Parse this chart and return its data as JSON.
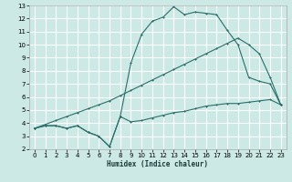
{
  "xlabel": "Humidex (Indice chaleur)",
  "bg_color": "#cce9e5",
  "grid_color": "#ffffff",
  "line_color": "#2a6e6a",
  "xlim": [
    -0.5,
    23.5
  ],
  "ylim": [
    2,
    13
  ],
  "xticks": [
    0,
    1,
    2,
    3,
    4,
    5,
    6,
    7,
    8,
    9,
    10,
    11,
    12,
    13,
    14,
    15,
    16,
    17,
    18,
    19,
    20,
    21,
    22,
    23
  ],
  "yticks": [
    2,
    3,
    4,
    5,
    6,
    7,
    8,
    9,
    10,
    11,
    12,
    13
  ],
  "curve1_x": [
    0,
    1,
    2,
    3,
    4,
    5,
    6,
    7,
    8,
    9,
    10,
    11,
    12,
    13,
    14,
    15,
    16,
    17,
    18,
    19,
    20,
    21,
    22,
    23
  ],
  "curve1_y": [
    3.6,
    3.8,
    3.8,
    3.6,
    3.8,
    3.3,
    3.0,
    2.2,
    4.5,
    4.1,
    4.2,
    4.4,
    4.6,
    4.8,
    4.9,
    5.1,
    5.3,
    5.4,
    5.5,
    5.5,
    5.6,
    5.7,
    5.8,
    5.4
  ],
  "curve2_x": [
    0,
    1,
    2,
    3,
    4,
    5,
    6,
    7,
    8,
    9,
    10,
    11,
    12,
    13,
    14,
    15,
    16,
    17,
    18,
    19,
    20,
    21,
    22,
    23
  ],
  "curve2_y": [
    3.6,
    3.8,
    3.8,
    3.6,
    3.8,
    3.3,
    3.0,
    2.2,
    4.5,
    8.6,
    10.8,
    11.8,
    12.1,
    12.9,
    12.3,
    12.5,
    12.4,
    12.3,
    11.1,
    10.0,
    7.5,
    7.2,
    7.0,
    5.4
  ],
  "curve3_x": [
    0,
    1,
    2,
    3,
    4,
    5,
    6,
    7,
    8,
    9,
    10,
    11,
    12,
    13,
    14,
    15,
    16,
    17,
    18,
    19,
    20,
    21,
    22,
    23
  ],
  "curve3_y": [
    3.6,
    3.9,
    4.2,
    4.5,
    4.8,
    5.1,
    5.4,
    5.7,
    6.1,
    6.5,
    6.9,
    7.3,
    7.7,
    8.1,
    8.5,
    8.9,
    9.3,
    9.7,
    10.1,
    10.5,
    10.0,
    9.3,
    7.5,
    5.4
  ]
}
